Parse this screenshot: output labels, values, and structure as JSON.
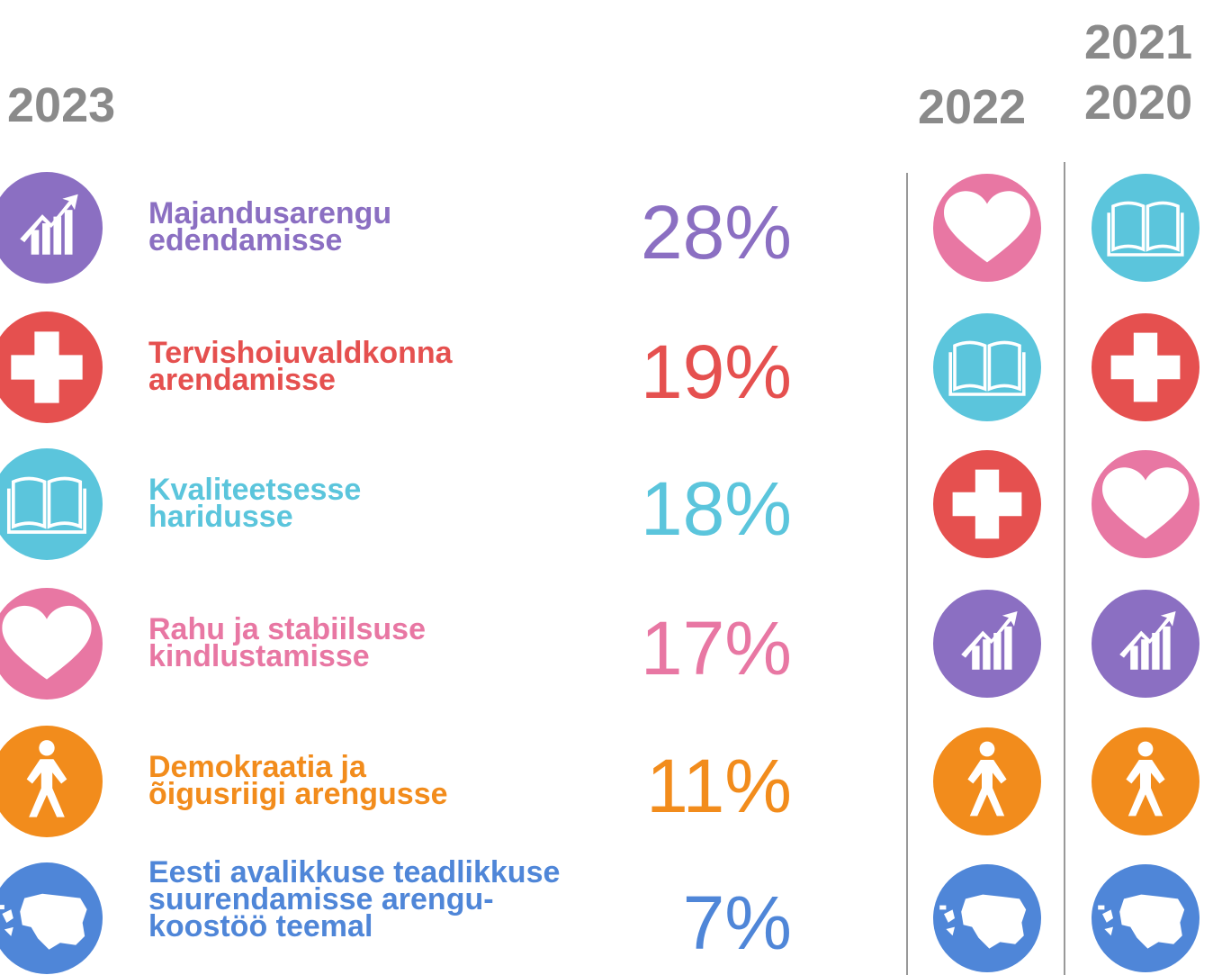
{
  "years": {
    "current": "2023",
    "previous": "2022",
    "earlier_top": "2021",
    "earlier_bottom": "2020"
  },
  "items": [
    {
      "label_lines": [
        "Majandusarengu",
        "edendamisse"
      ],
      "percent": "28%"
    },
    {
      "label_lines": [
        "Tervishoiuvaldkonna",
        "arendamisse"
      ],
      "percent": "19%"
    },
    {
      "label_lines": [
        "Kvaliteetsesse",
        "haridusse"
      ],
      "percent": "18%"
    },
    {
      "label_lines": [
        "Rahu ja stabiilsuse",
        "kindlustamisse"
      ],
      "percent": "17%"
    },
    {
      "label_lines": [
        "Demokraatia ja",
        "õigusriigi arengusse"
      ],
      "percent": "11%"
    },
    {
      "label_lines": [
        "Eesti avalikkuse teadlikkuse",
        "suurendamisse arengu-",
        "koostöö teemal"
      ],
      "percent": "7%"
    }
  ]
}
